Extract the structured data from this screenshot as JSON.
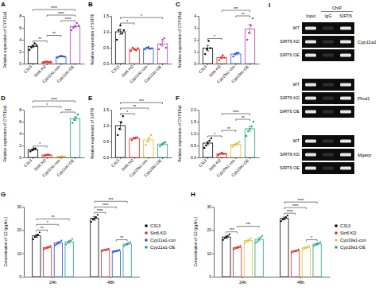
{
  "chart_data": [
    {
      "label": "A",
      "type": "bar",
      "ylabel": "Relative expression of CYP11a1",
      "categories": [
        "C313",
        "Sirt6 KD",
        "Cyp11a1-con",
        "Cyp11a1-OE"
      ],
      "colors": [
        "#000000",
        "#e8231f",
        "#2b4fd8",
        "#b03fb8"
      ],
      "values": [
        2.9,
        0.28,
        1.18,
        6.22
      ],
      "errors": [
        0.2,
        0.03,
        0.05,
        0.2
      ],
      "points": [
        [
          2.3,
          2.7,
          3.0,
          3.4,
          3.1
        ],
        [
          0.2,
          0.3,
          0.35,
          0.25,
          0.3
        ],
        [
          1.0,
          1.2,
          1.3,
          1.25,
          1.15
        ],
        [
          5.6,
          6.0,
          6.3,
          6.8,
          6.4
        ]
      ],
      "ylim": [
        0,
        8
      ],
      "yticks": [
        0,
        2,
        4,
        6,
        8
      ],
      "annotations": [
        {
          "between": [
            "C313",
            "Sirt6 KD"
          ],
          "label": "**"
        },
        {
          "between": [
            "Sirt6 KD",
            "Cyp11a1-con"
          ],
          "label": "**"
        },
        {
          "between": [
            "Cyp11a1-con",
            "Cyp11a1-OE"
          ],
          "label": "****"
        },
        {
          "between": [
            "Sirt6 KD",
            "Cyp11a1-OE"
          ],
          "label": "****"
        },
        {
          "between": [
            "C313",
            "Cyp11a1-OE"
          ],
          "label": "****"
        }
      ]
    },
    {
      "label": "B",
      "type": "bar",
      "ylabel": "Relative expression of SIRT6",
      "categories": [
        "C313",
        "Sirt6 KD",
        "Cyp11a1-con",
        "Cyp11a1-OE"
      ],
      "colors": [
        "#000000",
        "#e8231f",
        "#2b4fd8",
        "#b03fb8"
      ],
      "values": [
        1.0,
        0.45,
        0.48,
        0.62
      ],
      "errors": [
        0.08,
        0.02,
        0.01,
        0.07
      ],
      "points": [
        [
          0.75,
          1.05,
          1.2,
          0.95,
          1.05
        ],
        [
          0.4,
          0.5,
          0.45,
          0.42,
          0.48
        ],
        [
          0.45,
          0.5,
          0.52,
          0.46,
          0.48
        ],
        [
          0.45,
          0.6,
          0.75,
          0.8,
          0.5
        ]
      ],
      "ylim": [
        0,
        1.5
      ],
      "yticks": [
        {
          "value": 0,
          "label": "0.0"
        },
        {
          "value": 0.5,
          "label": "0.5"
        },
        {
          "value": 1,
          "label": "1.0"
        },
        {
          "value": 1.5,
          "label": "1.5"
        }
      ],
      "annotations": [
        {
          "between": [
            "C313",
            "Sirt6 KD"
          ],
          "label": "*"
        },
        {
          "between": [
            "C313",
            "Cyp11a1-OE"
          ],
          "label": "*"
        }
      ]
    },
    {
      "label": "C",
      "type": "bar",
      "ylabel": "Relative expression of CYP19a1",
      "categories": [
        "C313",
        "Sirt6 KD",
        "Cyp19a1-con",
        "Cyp19a1-OE"
      ],
      "colors": [
        "#000000",
        "#e8231f",
        "#2b4fd8",
        "#b03fb8"
      ],
      "values": [
        1.3,
        0.5,
        0.8,
        2.9
      ],
      "errors": [
        0.23,
        0.08,
        0.07,
        0.39
      ],
      "points": [
        [
          0.8,
          1.2,
          1.9,
          1.3
        ],
        [
          0.3,
          0.5,
          0.7,
          0.5
        ],
        [
          0.6,
          0.8,
          0.9,
          0.9
        ],
        [
          2.0,
          2.6,
          3.2,
          3.8
        ]
      ],
      "ylim": [
        0,
        4
      ],
      "yticks": [
        0,
        1,
        2,
        3,
        4
      ],
      "annotations": [
        {
          "between": [
            "C313",
            "Sirt6 KD"
          ],
          "label": "*"
        },
        {
          "between": [
            "Cyp19a1-con",
            "Cyp19a1-OE"
          ],
          "label": "**"
        },
        {
          "between": [
            "Sirt6 KD",
            "Cyp19a1-OE"
          ],
          "label": "***"
        }
      ]
    },
    {
      "label": "D",
      "type": "bar",
      "ylabel": "Relative expression of CYP11a1",
      "categories": [
        "C313",
        "Sirt6 KD",
        "Cyp11a1-con",
        "Cyp11a1-OE"
      ],
      "colors": [
        "#000000",
        "#e8231f",
        "#e6b830",
        "#1fa37a"
      ],
      "values": [
        1.3,
        0.4,
        0.15,
        6.5
      ],
      "errors": [
        0.12,
        0.04,
        0.02,
        0.29
      ],
      "points": [
        [
          1.0,
          1.2,
          1.5,
          1.5
        ],
        [
          0.3,
          0.4,
          0.5,
          0.4
        ],
        [
          0.1,
          0.15,
          0.2,
          0.15
        ],
        [
          5.8,
          6.3,
          6.7,
          7.2
        ]
      ],
      "ylim": [
        0,
        8
      ],
      "yticks": [
        0,
        2,
        4,
        6,
        8
      ],
      "annotations": [
        {
          "between": [
            "C313",
            "Sirt6 KD"
          ],
          "label": "*"
        },
        {
          "between": [
            "C313",
            "Cyp11a1-con"
          ],
          "label": "*"
        },
        {
          "between": [
            "Cyp11a1-con",
            "Cyp11a1-OE"
          ],
          "label": "****"
        },
        {
          "between": [
            "C313",
            "Cyp11a1-OE"
          ],
          "label": "****"
        }
      ]
    },
    {
      "label": "E",
      "type": "bar",
      "ylabel": "Relative expression of SIRT6",
      "categories": [
        "C313",
        "Sirt6 KD",
        "Cyp19a1-con",
        "Cyp19a1-OE"
      ],
      "colors": [
        "#000000",
        "#e8231f",
        "#e6b830",
        "#1fa37a"
      ],
      "values": [
        1.0,
        0.6,
        0.55,
        0.42
      ],
      "errors": [
        0.13,
        0.02,
        0.06,
        0.03
      ],
      "points": [
        [
          0.7,
          0.9,
          1.1,
          1.3
        ],
        [
          0.55,
          0.6,
          0.62,
          0.63
        ],
        [
          0.4,
          0.5,
          0.6,
          0.7
        ],
        [
          0.35,
          0.4,
          0.45,
          0.48
        ]
      ],
      "ylim": [
        0,
        1.5
      ],
      "yticks": [
        {
          "value": 0,
          "label": "0.0"
        },
        {
          "value": 0.5,
          "label": "0.5"
        },
        {
          "value": 1,
          "label": "1.0"
        },
        {
          "value": 1.5,
          "label": "1.5"
        }
      ],
      "annotations": [
        {
          "between": [
            "C313",
            "Sirt6 KD"
          ],
          "label": "*"
        },
        {
          "between": [
            "C313",
            "Cyp19a1-con"
          ],
          "label": "**"
        },
        {
          "between": [
            "C313",
            "Cyp19a1-OE"
          ],
          "label": "***"
        }
      ]
    },
    {
      "label": "F",
      "type": "bar",
      "ylabel": "Relative expression of CYP19a1",
      "categories": [
        "C313",
        "Sirt6 KD",
        "Cyp19a1-con",
        "Cyp19a1-OE"
      ],
      "colors": [
        "#000000",
        "#e8231f",
        "#e6b830",
        "#1fa37a"
      ],
      "values": [
        0.6,
        0.15,
        0.55,
        1.2
      ],
      "errors": [
        0.07,
        0.02,
        0.04,
        0.1
      ],
      "points": [
        [
          0.4,
          0.5,
          0.6,
          0.7,
          0.8
        ],
        [
          0.1,
          0.15,
          0.2,
          0.15,
          0.15
        ],
        [
          0.45,
          0.5,
          0.55,
          0.6,
          0.65
        ],
        [
          0.9,
          1.1,
          1.2,
          1.3,
          1.5
        ]
      ],
      "ylim": [
        0,
        2
      ],
      "yticks": [
        {
          "value": 0,
          "label": "0.0"
        },
        {
          "value": 0.5,
          "label": "0.5"
        },
        {
          "value": 1,
          "label": "1.0"
        },
        {
          "value": 1.5,
          "label": "1.5"
        },
        {
          "value": 2,
          "label": "2.0"
        }
      ],
      "annotations": [
        {
          "between": [
            "C313",
            "Sirt6 KD"
          ],
          "label": "*"
        },
        {
          "between": [
            "Sirt6 KD",
            "Cyp19a1-con"
          ],
          "label": "**"
        },
        {
          "between": [
            "Cyp19a1-con",
            "Cyp19a1-OE"
          ],
          "label": "**"
        },
        {
          "between": [
            "Sirt6 KD",
            "Cyp19a1-OE"
          ],
          "label": "****"
        }
      ]
    },
    {
      "label": "G",
      "type": "bar",
      "ylabel": "Concentration of E2 (pg/mL)",
      "legend": "right",
      "categories": [
        "24h",
        "48h"
      ],
      "series": [
        {
          "name": "C313",
          "color": "#000000",
          "values": [
            17.5,
            25.0
          ],
          "errors": [
            0.6,
            0.8
          ],
          "points": [
            [
              16,
              17,
              17.5,
              18,
              19
            ],
            [
              23.5,
              24.5,
              25,
              25.5,
              26.5
            ]
          ]
        },
        {
          "name": "Sirt6 KD",
          "color": "#e8231f",
          "values": [
            12.5,
            11.5
          ],
          "errors": [
            0.4,
            0.3
          ],
          "points": [
            [
              11.8,
              12.2,
              12.5,
              12.8,
              13.2
            ],
            [
              11,
              11.3,
              11.5,
              11.7,
              12
            ]
          ]
        },
        {
          "name": "Cyp11a1-con",
          "color": "#2b4fd8",
          "values": [
            14.5,
            11.0
          ],
          "errors": [
            0.5,
            0.3
          ],
          "points": [
            [
              13.5,
              14,
              14.5,
              15,
              15.5
            ],
            [
              10.5,
              10.8,
              11,
              11.2,
              11.5
            ]
          ]
        },
        {
          "name": "Cyp11a1-OE",
          "color": "#1f9c8c",
          "values": [
            15.0,
            14.0
          ],
          "errors": [
            0.6,
            0.4
          ],
          "points": [
            [
              13.8,
              14.5,
              15,
              15.5,
              16.2
            ],
            [
              13.2,
              13.6,
              14,
              14.4,
              14.8
            ]
          ]
        }
      ],
      "ylim": [
        0,
        30
      ],
      "yticks": [
        0,
        10,
        20,
        30
      ],
      "annotations": [
        {
          "group": "24h",
          "between": [
            "C313",
            "Sirt6 KD"
          ],
          "label": "**"
        },
        {
          "group": "24h",
          "between": [
            "C313",
            "Cyp11a1-con"
          ],
          "label": "*"
        },
        {
          "group": "24h",
          "between": [
            "C313",
            "Cyp11a1-OE"
          ],
          "label": "**"
        },
        {
          "group": "48h",
          "between": [
            "C313",
            "Sirt6 KD"
          ],
          "label": "****"
        },
        {
          "group": "48h",
          "between": [
            "C313",
            "Cyp11a1-con"
          ],
          "label": "****"
        },
        {
          "group": "48h",
          "between": [
            "Cyp11a1-con",
            "Cyp11a1-OE"
          ],
          "label": "**"
        },
        {
          "group": "48h",
          "between": [
            "C313",
            "Cyp11a1-OE"
          ],
          "label": "***"
        }
      ]
    },
    {
      "label": "H",
      "type": "bar",
      "ylabel": "Concentration of E2 (pg/mL)",
      "legend": "right",
      "categories": [
        "24h",
        "48h"
      ],
      "series": [
        {
          "name": "C313",
          "color": "#000000",
          "values": [
            17.0,
            25.0
          ],
          "errors": [
            0.5,
            0.6
          ],
          "points": [
            [
              15.8,
              16.5,
              17,
              17.5,
              18.2
            ],
            [
              23.8,
              24.5,
              25,
              25.5,
              26.2
            ]
          ]
        },
        {
          "name": "Sirt6 KD",
          "color": "#e8231f",
          "values": [
            12.5,
            11.0
          ],
          "errors": [
            0.4,
            0.3
          ],
          "points": [
            [
              11.8,
              12.2,
              12.5,
              12.8,
              13.2
            ],
            [
              10.4,
              10.8,
              11,
              11.2,
              11.6
            ]
          ]
        },
        {
          "name": "Cyp19a1-con",
          "color": "#e6c229",
          "values": [
            15.5,
            12.5
          ],
          "errors": [
            0.5,
            0.4
          ],
          "points": [
            [
              14.5,
              15,
              15.5,
              16,
              16.5
            ],
            [
              11.8,
              12.2,
              12.5,
              12.8,
              13.2
            ]
          ]
        },
        {
          "name": "Cyp19a1-OE",
          "color": "#1f9c8c",
          "values": [
            16.0,
            14.0
          ],
          "errors": [
            0.7,
            0.4
          ],
          "points": [
            [
              14.5,
              15.2,
              16,
              16.8,
              17.5
            ],
            [
              13.2,
              13.6,
              14,
              14.4,
              14.8
            ]
          ]
        }
      ],
      "ylim": [
        0,
        30
      ],
      "yticks": [
        0,
        10,
        20,
        30
      ],
      "annotations": [
        {
          "group": "24h",
          "between": [
            "C313",
            "Sirt6 KD"
          ],
          "label": "***"
        },
        {
          "group": "24h",
          "between": [
            "Sirt6 KD",
            "Cyp19a1-OE"
          ],
          "label": "***"
        },
        {
          "group": "48h",
          "between": [
            "C313",
            "Sirt6 KD"
          ],
          "label": "****"
        },
        {
          "group": "48h",
          "between": [
            "C313",
            "Cyp19a1-con"
          ],
          "label": "****"
        },
        {
          "group": "48h",
          "between": [
            "Cyp19a1-con",
            "Cyp19a1-OE"
          ],
          "label": "*"
        },
        {
          "group": "48h",
          "between": [
            "C313",
            "Cyp19a1-OE"
          ],
          "label": "****"
        }
      ]
    }
  ],
  "gel": {
    "label": "I",
    "title": "ChIP",
    "columns": [
      "Input",
      "IgG",
      "SIRT6"
    ],
    "blocks": [
      {
        "gene": "Cyp11a1",
        "rows": [
          "WT",
          "SIRT6 KD",
          "SIRT6 OE"
        ]
      },
      {
        "gene": "Plod1",
        "rows": [
          "WT",
          "SIRT6 KD",
          "SIRT6 OE"
        ]
      },
      {
        "gene": "Mgarp",
        "rows": [
          "WT",
          "SIRT6 KD",
          "SIRT6 OE"
        ]
      }
    ]
  }
}
